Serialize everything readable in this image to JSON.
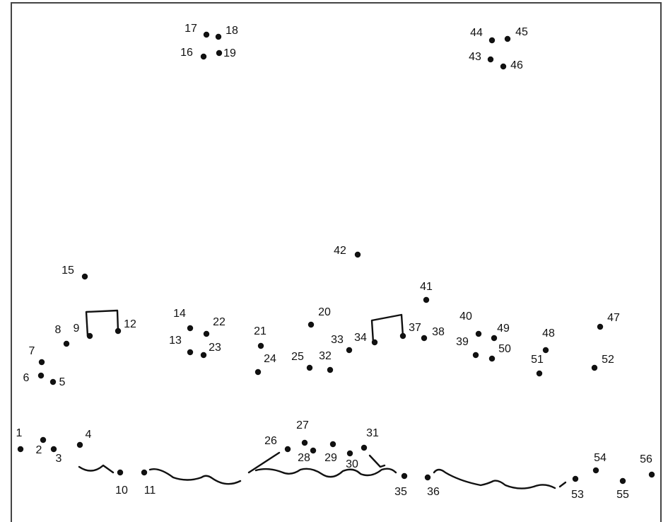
{
  "dots": [
    {
      "label": "1"
    },
    {
      "label": "2"
    },
    {
      "label": "3"
    },
    {
      "label": "4"
    },
    {
      "label": "5"
    },
    {
      "label": "6"
    },
    {
      "label": "7"
    },
    {
      "label": "8"
    },
    {
      "label": "9"
    },
    {
      "label": "10"
    },
    {
      "label": "11"
    },
    {
      "label": "12"
    },
    {
      "label": "13"
    },
    {
      "label": "14"
    },
    {
      "label": "15"
    },
    {
      "label": "16"
    },
    {
      "label": "17"
    },
    {
      "label": "18"
    },
    {
      "label": "19"
    },
    {
      "label": "20"
    },
    {
      "label": "21"
    },
    {
      "label": "22"
    },
    {
      "label": "23"
    },
    {
      "label": "24"
    },
    {
      "label": "25"
    },
    {
      "label": "26"
    },
    {
      "label": "27"
    },
    {
      "label": "28"
    },
    {
      "label": "29"
    },
    {
      "label": "30"
    },
    {
      "label": "31"
    },
    {
      "label": "32"
    },
    {
      "label": "33"
    },
    {
      "label": "34"
    },
    {
      "label": "35"
    },
    {
      "label": "36"
    },
    {
      "label": "37"
    },
    {
      "label": "38"
    },
    {
      "label": "39"
    },
    {
      "label": "40"
    },
    {
      "label": "41"
    },
    {
      "label": "42"
    },
    {
      "label": "43"
    },
    {
      "label": "44"
    },
    {
      "label": "45"
    },
    {
      "label": "46"
    },
    {
      "label": "47"
    },
    {
      "label": "48"
    },
    {
      "label": "49"
    },
    {
      "label": "50"
    },
    {
      "label": "51"
    },
    {
      "label": "52"
    },
    {
      "label": "53"
    },
    {
      "label": "54"
    },
    {
      "label": "55"
    },
    {
      "label": "56"
    }
  ]
}
